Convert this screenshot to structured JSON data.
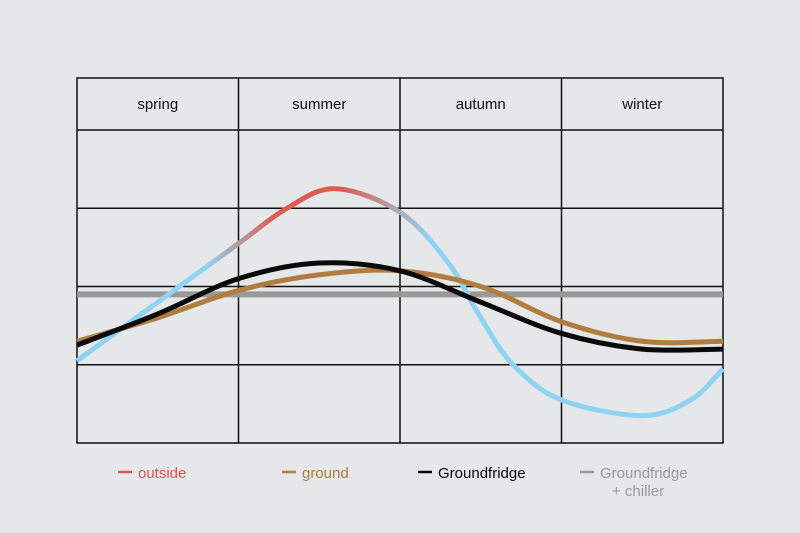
{
  "chart_data": {
    "type": "line",
    "title": "",
    "xlabel": "",
    "ylabel": "",
    "x_range": [
      0,
      4
    ],
    "ylim": [
      0,
      4
    ],
    "grid": true,
    "legend_position": "bottom",
    "seasons": [
      "spring",
      "summer",
      "autumn",
      "winter"
    ],
    "series": [
      {
        "name": "outside",
        "color": "#e05a4f",
        "line_color": "#8fd3f4",
        "legend_color": "#e05353",
        "points": [
          [
            0,
            1.05
          ],
          [
            0.5,
            1.8
          ],
          [
            1,
            2.55
          ],
          [
            1.3,
            3.0
          ],
          [
            1.6,
            3.25
          ],
          [
            2,
            2.95
          ],
          [
            2.3,
            2.3
          ],
          [
            2.5,
            1.6
          ],
          [
            2.7,
            1.0
          ],
          [
            3.0,
            0.55
          ],
          [
            3.5,
            0.35
          ],
          [
            3.8,
            0.55
          ],
          [
            4,
            0.95
          ]
        ]
      },
      {
        "name": "ground",
        "color": "#b07d3f",
        "legend_color": "#b07d3f",
        "points": [
          [
            0,
            1.3
          ],
          [
            0.5,
            1.6
          ],
          [
            1,
            1.95
          ],
          [
            1.5,
            2.15
          ],
          [
            2,
            2.2
          ],
          [
            2.5,
            2.0
          ],
          [
            3,
            1.55
          ],
          [
            3.5,
            1.3
          ],
          [
            4,
            1.3
          ]
        ]
      },
      {
        "name": "Groundfridge",
        "color": "#0a0a0a",
        "legend_color": "#0a0a0a",
        "points": [
          [
            0,
            1.25
          ],
          [
            0.5,
            1.65
          ],
          [
            1,
            2.1
          ],
          [
            1.5,
            2.3
          ],
          [
            2,
            2.2
          ],
          [
            2.5,
            1.8
          ],
          [
            3,
            1.4
          ],
          [
            3.5,
            1.2
          ],
          [
            4,
            1.2
          ]
        ]
      },
      {
        "name": "Groundfridge\n+ chiller",
        "color": "#999999",
        "legend_color": "#999999",
        "points": [
          [
            0,
            1.9
          ],
          [
            4,
            1.9
          ]
        ]
      }
    ]
  }
}
